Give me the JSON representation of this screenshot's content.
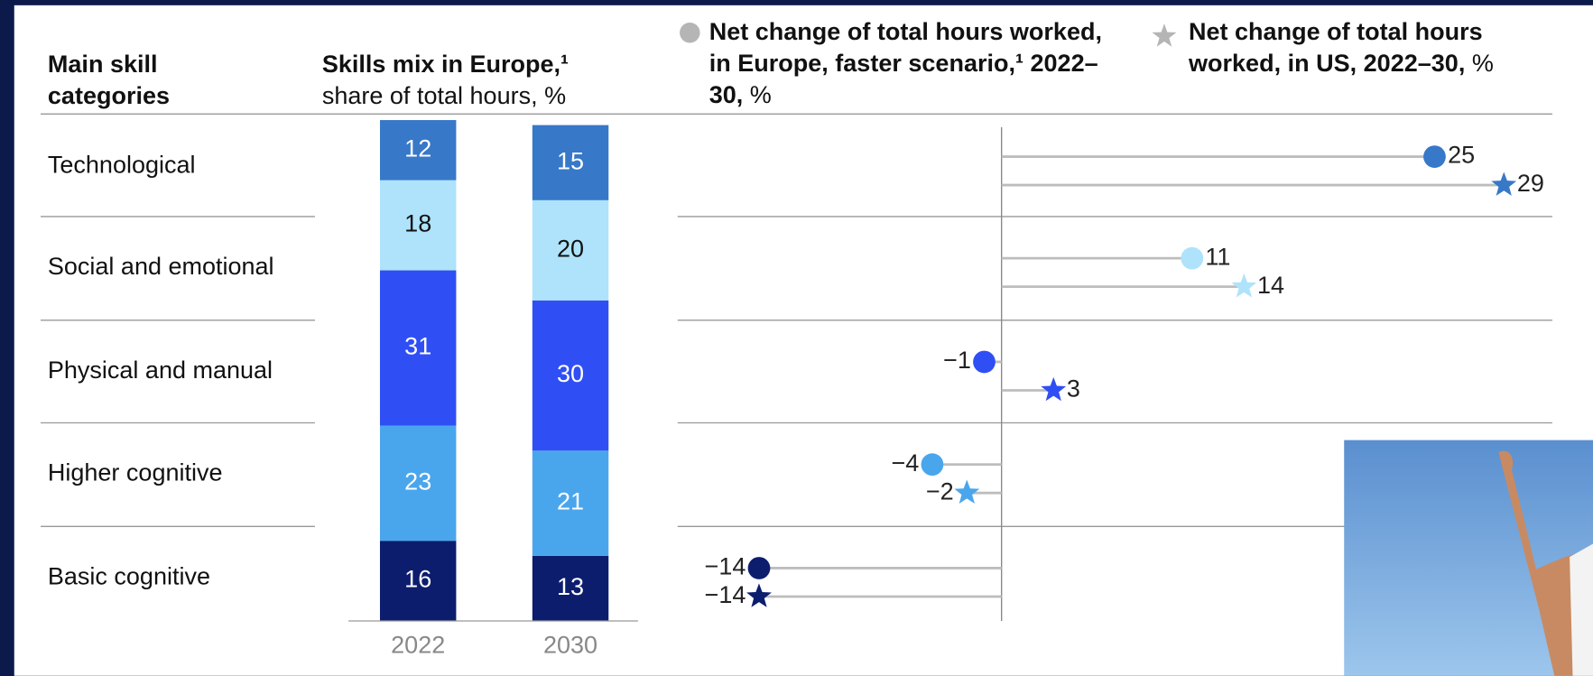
{
  "row_header": "Main skill categories",
  "chart_data": [
    {
      "type": "stacked-bar",
      "title": "Skills mix in Europe,¹",
      "subtitle": "share of total hours, %",
      "categories": [
        "2022",
        "2030"
      ],
      "ylim": [
        0,
        100
      ],
      "series": [
        {
          "name": "Technological",
          "color": "#3778c8",
          "values": [
            12,
            15
          ]
        },
        {
          "name": "Social and emotional",
          "color": "#aee3fb",
          "values": [
            18,
            20
          ]
        },
        {
          "name": "Physical and manual",
          "color": "#2f4ff5",
          "values": [
            31,
            30
          ]
        },
        {
          "name": "Higher cognitive",
          "color": "#4aa6ec",
          "values": [
            23,
            21
          ]
        },
        {
          "name": "Basic cognitive",
          "color": "#0d1d6e",
          "values": [
            16,
            13
          ]
        }
      ]
    },
    {
      "type": "dot",
      "xlim": [
        -18.7,
        31.8
      ],
      "series": [
        {
          "name": "Net change of total hours worked, in Europe, faster scenario,¹ 2022–30,",
          "unit": "%",
          "marker": "circle",
          "values": [
            25,
            11,
            -1,
            -4,
            -14
          ],
          "value_labels": [
            "25",
            "11",
            "−1",
            "−4",
            "−14"
          ]
        },
        {
          "name": "Net change of total hours worked, in US, 2022–30,",
          "unit": "%",
          "marker": "star",
          "values": [
            29,
            14,
            3,
            -2,
            -14
          ],
          "value_labels": [
            "29",
            "14",
            "3",
            "−2",
            "−14"
          ]
        }
      ]
    }
  ]
}
